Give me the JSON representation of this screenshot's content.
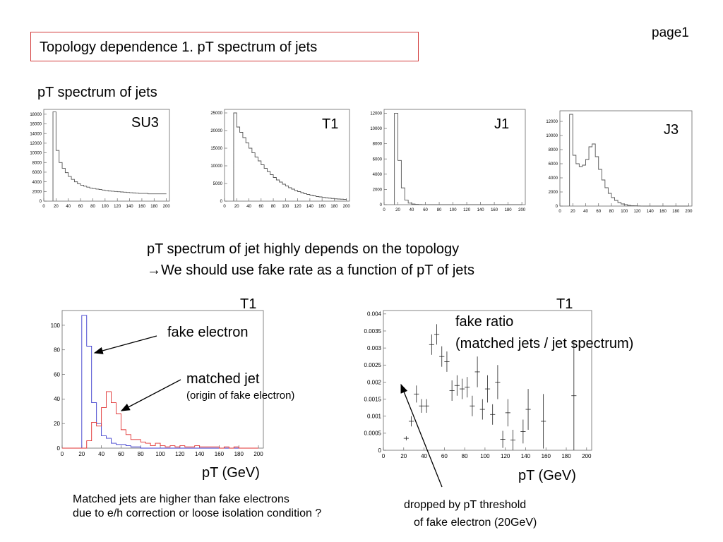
{
  "page_label": "page1",
  "title": "Topology dependence 1.    pT spectrum of jets",
  "section_heading": "pT spectrum of jets",
  "conclusion_line1": "pT spectrum of jet highly depends on the topology",
  "conclusion_line2": "We should use fake rate as a function of pT of jets",
  "conclusion_arrow": "→",
  "bottom_note_line1": "Matched jets are higher than fake electrons",
  "bottom_note_line2": "due to e/h correction or loose isolation condition ?",
  "colors": {
    "title_border": "#d23a3a",
    "fake_electron": "#3a3acc",
    "matched_jet": "#e03030",
    "hist": "#555555"
  },
  "chart_data": [
    {
      "type": "bar",
      "panel": "SU3",
      "x_edges_start": 15,
      "x_bin_width": 5,
      "values": [
        18500,
        10500,
        8000,
        6800,
        5900,
        5100,
        4500,
        4000,
        3600,
        3300,
        3100,
        2900,
        2700,
        2600,
        2500,
        2400,
        2300,
        2200,
        2100,
        2050,
        2000,
        1950,
        1900,
        1850,
        1800,
        1750,
        1700,
        1650,
        1600,
        1600,
        1600,
        1500,
        1500,
        1500,
        1500,
        1500,
        1500
      ],
      "xlim": [
        0,
        205
      ],
      "ylim": [
        0,
        19000
      ],
      "x_ticks": [
        0,
        20,
        40,
        60,
        80,
        100,
        120,
        140,
        160,
        180,
        200
      ],
      "y_ticks": [
        0,
        2000,
        4000,
        6000,
        8000,
        10000,
        12000,
        14000,
        16000,
        18000
      ]
    },
    {
      "type": "bar",
      "panel": "T1",
      "x_edges_start": 15,
      "x_bin_width": 5,
      "values": [
        25000,
        21000,
        19500,
        18000,
        16500,
        15000,
        13700,
        12500,
        11400,
        10300,
        9300,
        8400,
        7500,
        6700,
        6000,
        5400,
        4800,
        4300,
        3800,
        3400,
        3000,
        2700,
        2400,
        2100,
        1900,
        1700,
        1500,
        1300,
        1200,
        1050,
        950,
        850,
        750,
        650,
        600,
        550,
        500
      ],
      "xlim": [
        0,
        205
      ],
      "ylim": [
        0,
        26000
      ],
      "x_ticks": [
        0,
        20,
        40,
        60,
        80,
        100,
        120,
        140,
        160,
        180,
        200
      ],
      "y_ticks": [
        0,
        5000,
        10000,
        15000,
        20000,
        25000
      ]
    },
    {
      "type": "bar",
      "panel": "J1",
      "x_edges_start": 15,
      "x_bin_width": 5,
      "values": [
        12000,
        5800,
        2200,
        600,
        200,
        80,
        40,
        20,
        10,
        5,
        0,
        0,
        0,
        0,
        0,
        0,
        0,
        0,
        0,
        0,
        0,
        0,
        0,
        0,
        0,
        0,
        0,
        0,
        0,
        0,
        0,
        0,
        0,
        0,
        0,
        0,
        0
      ],
      "xlim": [
        0,
        205
      ],
      "ylim": [
        0,
        12500
      ],
      "x_ticks": [
        0,
        20,
        40,
        60,
        80,
        100,
        120,
        140,
        160,
        180,
        200
      ],
      "y_ticks": [
        0,
        2000,
        4000,
        6000,
        8000,
        10000,
        12000
      ]
    },
    {
      "type": "bar",
      "panel": "J3",
      "x_edges_start": 15,
      "x_bin_width": 5,
      "values": [
        13000,
        7200,
        6000,
        5600,
        5800,
        6600,
        8400,
        8800,
        7000,
        5200,
        3700,
        2600,
        1800,
        1200,
        800,
        500,
        300,
        200,
        100,
        60,
        40,
        20,
        10,
        0,
        0,
        0,
        0,
        0,
        0,
        0,
        0,
        0,
        0,
        0,
        0,
        0,
        0
      ],
      "xlim": [
        0,
        205
      ],
      "ylim": [
        0,
        13500
      ],
      "x_ticks": [
        0,
        20,
        40,
        60,
        80,
        100,
        120,
        140,
        160,
        180,
        200
      ],
      "y_ticks": [
        0,
        2000,
        4000,
        6000,
        8000,
        10000,
        12000
      ]
    },
    {
      "type": "bar",
      "panel": "T1 overlay",
      "title": "T1",
      "xlabel": "pT (GeV)",
      "x_edges_start": 0,
      "x_bin_width": 5,
      "series": [
        {
          "name": "fake electron",
          "values": [
            0,
            0,
            0,
            0,
            108,
            83,
            37,
            20,
            10,
            8,
            4,
            3,
            3,
            2,
            1,
            1,
            0,
            0,
            0,
            0,
            0,
            0,
            0,
            0,
            0,
            0,
            0,
            0,
            0,
            0,
            0,
            0,
            0,
            0,
            0,
            0,
            0,
            0,
            0,
            0
          ]
        },
        {
          "name": "matched jet",
          "values": [
            0,
            0,
            0,
            0,
            0,
            6,
            21,
            18,
            33,
            46,
            37,
            28,
            15,
            11,
            7,
            7,
            5,
            4,
            2,
            4,
            2,
            1,
            2,
            1,
            2,
            1,
            1,
            2,
            1,
            1,
            1,
            1,
            0,
            1,
            0,
            1,
            0,
            0,
            0,
            0
          ]
        }
      ],
      "annotations": {
        "fake_electron": "fake electron",
        "matched_jet": "matched jet",
        "matched_jet_sub": "(origin of fake electron)"
      },
      "xlim": [
        0,
        205
      ],
      "ylim": [
        0,
        112
      ],
      "x_ticks": [
        0,
        20,
        40,
        60,
        80,
        100,
        120,
        140,
        160,
        180,
        200
      ],
      "y_ticks": [
        0,
        20,
        40,
        60,
        80,
        100
      ]
    },
    {
      "type": "scatter",
      "panel": "T1 ratio",
      "title": "T1",
      "xlabel": "pT (GeV)",
      "points": [
        {
          "x": 22.5,
          "y": 0.00035,
          "e": 6e-05
        },
        {
          "x": 27.5,
          "y": 0.00085,
          "e": 0.00015
        },
        {
          "x": 32.5,
          "y": 0.00165,
          "e": 0.00025
        },
        {
          "x": 37.5,
          "y": 0.0013,
          "e": 0.0002
        },
        {
          "x": 42.5,
          "y": 0.0013,
          "e": 0.0002
        },
        {
          "x": 47.5,
          "y": 0.0031,
          "e": 0.0003
        },
        {
          "x": 52.5,
          "y": 0.0034,
          "e": 0.0003
        },
        {
          "x": 57.5,
          "y": 0.00275,
          "e": 0.0003
        },
        {
          "x": 62.5,
          "y": 0.0026,
          "e": 0.0003
        },
        {
          "x": 67.5,
          "y": 0.00175,
          "e": 0.0003
        },
        {
          "x": 72.5,
          "y": 0.0019,
          "e": 0.0003
        },
        {
          "x": 77.5,
          "y": 0.0018,
          "e": 0.0003
        },
        {
          "x": 82.5,
          "y": 0.00185,
          "e": 0.0003
        },
        {
          "x": 87.5,
          "y": 0.0013,
          "e": 0.0003
        },
        {
          "x": 92.5,
          "y": 0.0023,
          "e": 0.00045
        },
        {
          "x": 97.5,
          "y": 0.0012,
          "e": 0.0003
        },
        {
          "x": 102.5,
          "y": 0.0018,
          "e": 0.0004
        },
        {
          "x": 107.5,
          "y": 0.00105,
          "e": 0.0003
        },
        {
          "x": 112.5,
          "y": 0.002,
          "e": 0.0005
        },
        {
          "x": 117.5,
          "y": 0.00032,
          "e": 0.00025
        },
        {
          "x": 122.5,
          "y": 0.0011,
          "e": 0.0004
        },
        {
          "x": 127.5,
          "y": 0.0003,
          "e": 0.0003
        },
        {
          "x": 137.5,
          "y": 0.00055,
          "e": 0.00035
        },
        {
          "x": 142.5,
          "y": 0.0012,
          "e": 0.0006
        },
        {
          "x": 157.5,
          "y": 0.00085,
          "e": 0.0008
        },
        {
          "x": 187.5,
          "y": 0.0016,
          "e": 0.0016
        }
      ],
      "annotations": {
        "fake_ratio_line1": "fake ratio",
        "fake_ratio_line2": "(matched jets / jet spectrum)",
        "threshold_line1": "dropped by pT threshold",
        "threshold_line2": "of fake electron (20GeV)"
      },
      "xlim": [
        0,
        205
      ],
      "ylim": [
        0,
        0.0041
      ],
      "x_ticks": [
        0,
        20,
        40,
        60,
        80,
        100,
        120,
        140,
        160,
        180,
        200
      ],
      "y_ticks": [
        0,
        0.0005,
        0.001,
        0.0015,
        0.002,
        0.0025,
        0.003,
        0.0035,
        0.004
      ]
    }
  ]
}
